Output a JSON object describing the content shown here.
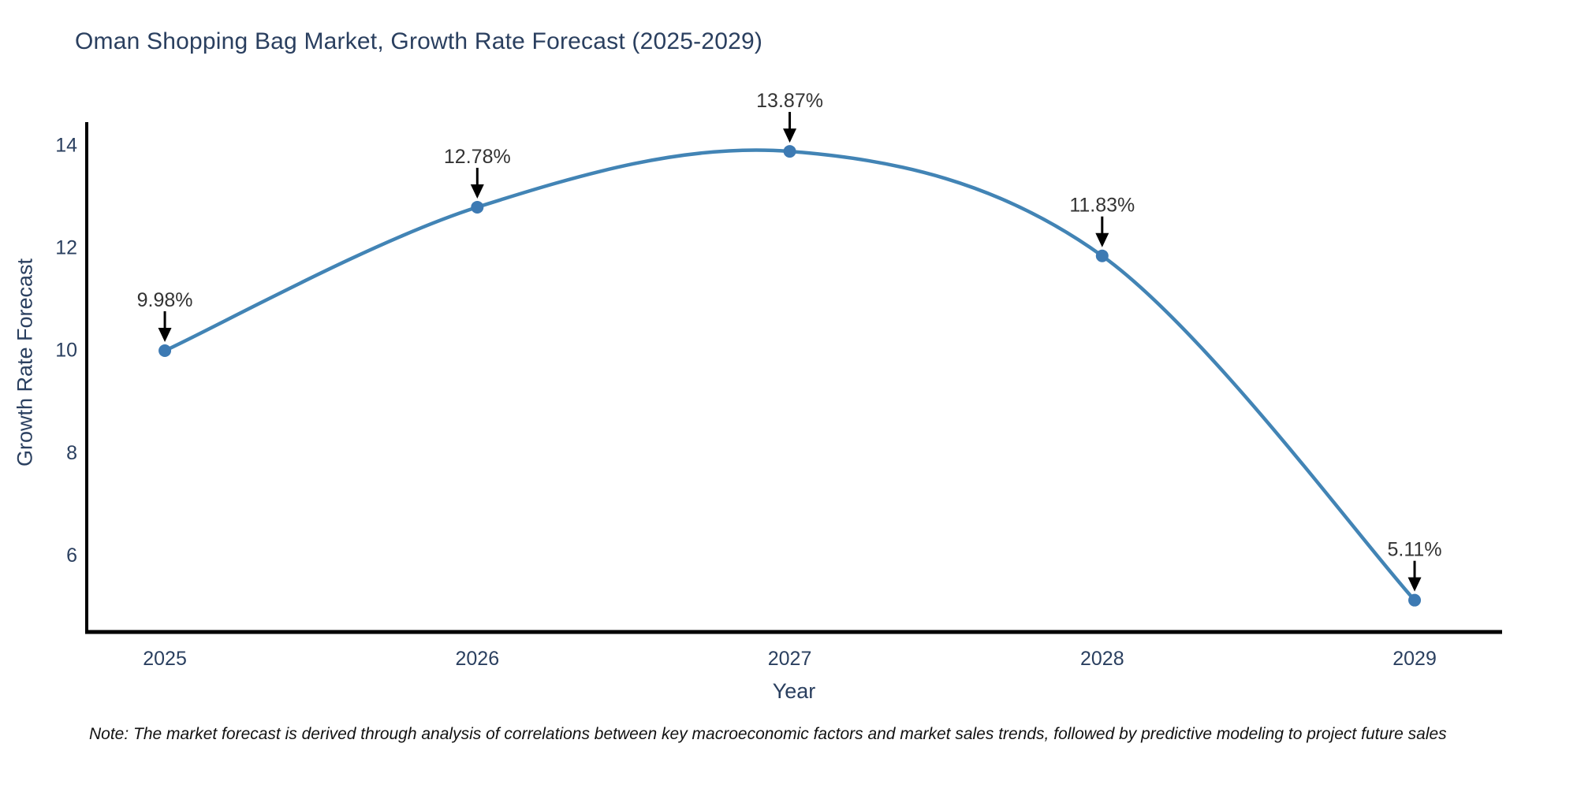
{
  "chart_data": {
    "type": "line",
    "title": "Oman Shopping Bag Market, Growth Rate Forecast (2025-2029)",
    "xlabel": "Year",
    "ylabel": "Growth Rate Forecast",
    "x": [
      2025,
      2026,
      2027,
      2028,
      2029
    ],
    "series": [
      {
        "name": "Growth Rate Forecast",
        "values": [
          9.98,
          12.78,
          13.87,
          11.83,
          5.11
        ],
        "point_labels": [
          "9.98%",
          "12.78%",
          "13.87%",
          "11.83%",
          "5.11%"
        ]
      }
    ],
    "line_shape": "spline",
    "markers": true,
    "annotations_with_arrows": true,
    "grid": false,
    "legend_position": "none",
    "xticks": [
      "2025",
      "2026",
      "2027",
      "2028",
      "2029"
    ],
    "yticks": [
      6,
      8,
      10,
      12,
      14
    ],
    "xlim": [
      2024.75,
      2029.28
    ],
    "ylim": [
      4.49,
      14.44
    ],
    "colors": {
      "line": "#4284b5",
      "marker": "#3d7ab3",
      "arrow": "#000000",
      "axis": "#000000",
      "title_text": "#2a3f5f",
      "axis_title_text": "#2a3f5f",
      "tick_text": "#2a3f5f",
      "point_label_text": "#333333",
      "background": "#ffffff"
    }
  },
  "note": {
    "text": "Note: The market forecast is derived through analysis of correlations between key macroeconomic factors and market sales trends, followed by predictive modeling to project future sales"
  }
}
